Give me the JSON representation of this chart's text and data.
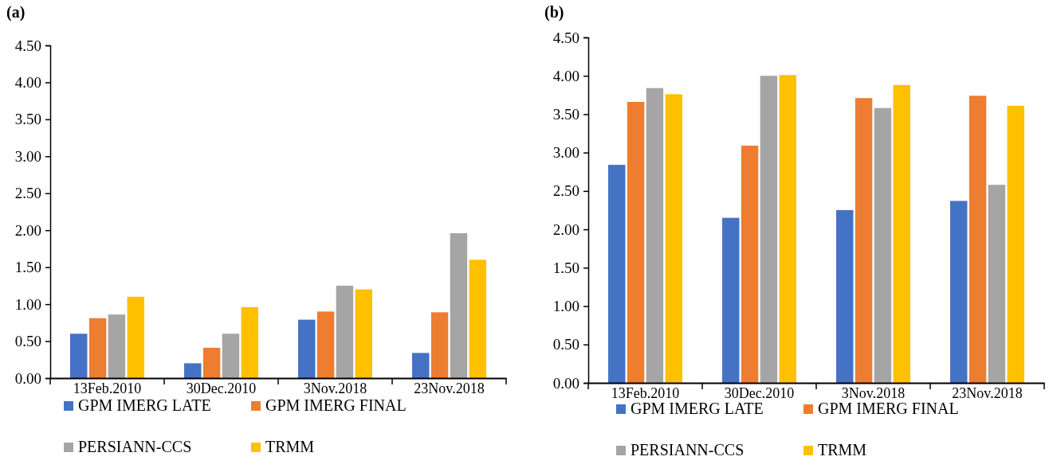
{
  "chart_data": [
    {
      "type": "bar",
      "title": "(a)",
      "categories": [
        "13Feb.2010",
        "30Dec.2010",
        "3Nov.2018",
        "23Nov.2018"
      ],
      "series": [
        {
          "name": "GPM IMERG LATE",
          "color": "#4472c4",
          "values": [
            0.6,
            0.2,
            0.79,
            0.34
          ]
        },
        {
          "name": "GPM IMERG FINAL",
          "color": "#ed7d31",
          "values": [
            0.81,
            0.41,
            0.9,
            0.89
          ]
        },
        {
          "name": "PERSIANN-CCS",
          "color": "#a5a5a5",
          "values": [
            0.86,
            0.6,
            1.25,
            1.96
          ]
        },
        {
          "name": "TRMM",
          "color": "#ffc000",
          "values": [
            1.1,
            0.96,
            1.2,
            1.6
          ]
        }
      ],
      "ylim": [
        0,
        4.5
      ],
      "yticks": [
        {
          "value": 0,
          "label": "0.00"
        },
        {
          "value": 0.5,
          "label": "0.50"
        },
        {
          "value": 1,
          "label": "1.00"
        },
        {
          "value": 1.5,
          "label": "1.50"
        },
        {
          "value": 2,
          "label": "2.00"
        },
        {
          "value": 2.5,
          "label": "2.50"
        },
        {
          "value": 3,
          "label": "3.00"
        },
        {
          "value": 3.5,
          "label": "3.50"
        },
        {
          "value": 4,
          "label": "4.00"
        },
        {
          "value": 4.5,
          "label": "4.50"
        }
      ],
      "grid": false,
      "legend": "bottom"
    },
    {
      "type": "bar",
      "title": "(b)",
      "categories": [
        "13Feb.2010",
        "30Dec.2010",
        "3Nov.2018",
        "23Nov.2018"
      ],
      "series": [
        {
          "name": "GPM IMERG LATE",
          "color": "#4472c4",
          "values": [
            2.84,
            2.15,
            2.25,
            2.37
          ]
        },
        {
          "name": "GPM IMERG FINAL",
          "color": "#ed7d31",
          "values": [
            3.66,
            3.09,
            3.71,
            3.74
          ]
        },
        {
          "name": "PERSIANN-CCS",
          "color": "#a5a5a5",
          "values": [
            3.84,
            4.0,
            3.58,
            2.58
          ]
        },
        {
          "name": "TRMM",
          "color": "#ffc000",
          "values": [
            3.76,
            4.01,
            3.88,
            3.61
          ]
        }
      ],
      "ylim": [
        0,
        4.5
      ],
      "yticks": [
        {
          "value": 0,
          "label": "0.00"
        },
        {
          "value": 0.5,
          "label": "0.50"
        },
        {
          "value": 1,
          "label": "1.00"
        },
        {
          "value": 1.5,
          "label": "1.50"
        },
        {
          "value": 2,
          "label": "2.00"
        },
        {
          "value": 2.5,
          "label": "2.50"
        },
        {
          "value": 3,
          "label": "3.00"
        },
        {
          "value": 3.5,
          "label": "3.50"
        },
        {
          "value": 4,
          "label": "4.00"
        },
        {
          "value": 4.5,
          "label": "4.50"
        }
      ],
      "grid": false,
      "legend": "bottom"
    }
  ]
}
